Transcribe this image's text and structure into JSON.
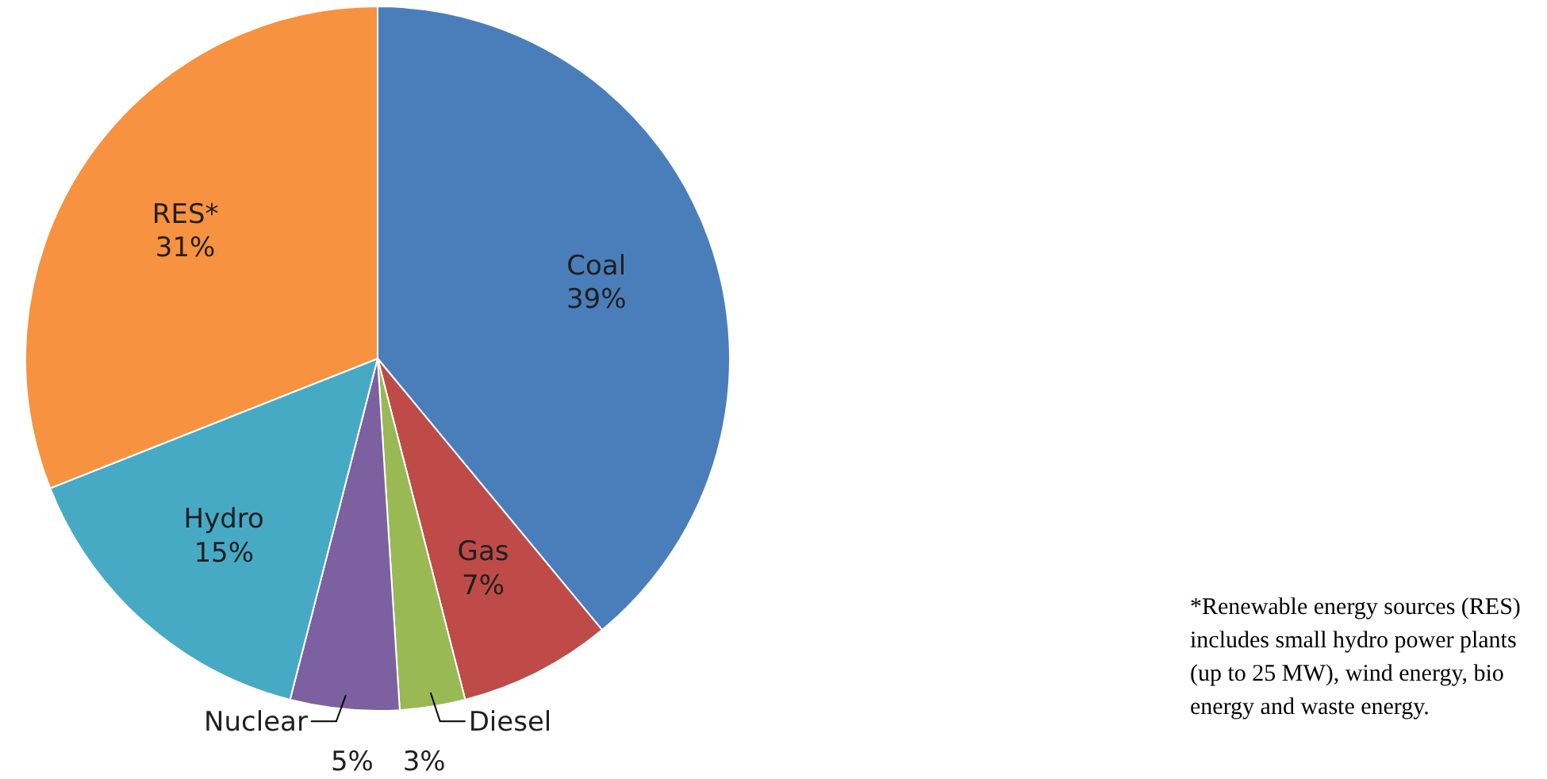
{
  "chart_data": {
    "type": "pie",
    "categories": [
      "Coal",
      "Gas",
      "Diesel",
      "Nuclear",
      "Hydro",
      "RES*"
    ],
    "values": [
      39,
      7,
      3,
      5,
      15,
      31
    ],
    "value_labels": [
      "39%",
      "7%",
      "3%",
      "5%",
      "15%",
      "31%"
    ],
    "colors": [
      "#4a7ebb",
      "#be4b48",
      "#98b954",
      "#7d60a0",
      "#46aac5",
      "#f69240"
    ],
    "annotations": [
      "*Renewable energy sources (RES) includes small hydro power plants (up to 25 MW), wind energy, bio energy and waste energy."
    ]
  }
}
